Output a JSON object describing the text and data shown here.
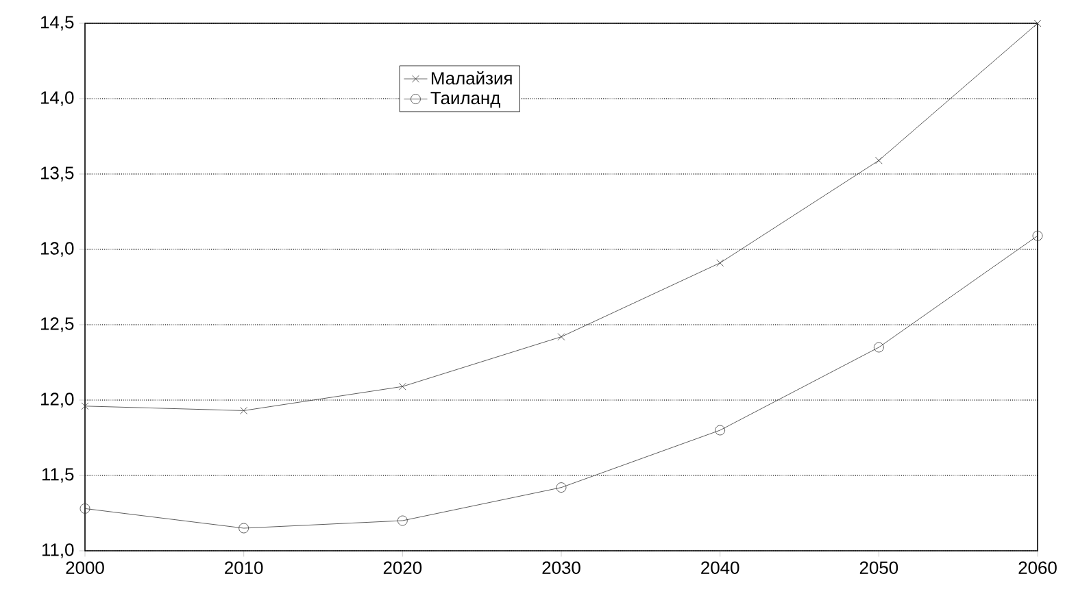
{
  "chart_data": {
    "type": "line",
    "x": [
      2000,
      2010,
      2020,
      2030,
      2040,
      2050,
      2060
    ],
    "series": [
      {
        "name": "Малайзия",
        "color": "#333333",
        "marker": "cross",
        "values": [
          11.96,
          11.93,
          12.09,
          12.42,
          12.91,
          13.59,
          14.5
        ]
      },
      {
        "name": "Таиланд",
        "color": "#333333",
        "marker": "circle",
        "values": [
          11.28,
          11.15,
          11.2,
          11.42,
          11.8,
          12.35,
          13.09
        ]
      }
    ],
    "xlim": [
      2000,
      2060
    ],
    "xticks": [
      2000,
      2010,
      2020,
      2030,
      2040,
      2050,
      2060
    ],
    "ylim": [
      11.0,
      14.5
    ],
    "yticks": [
      {
        "value": 11.0,
        "label": "11,0"
      },
      {
        "value": 11.5,
        "label": "11,5"
      },
      {
        "value": 12.0,
        "label": "12,0"
      },
      {
        "value": 12.5,
        "label": "12,5"
      },
      {
        "value": 13.0,
        "label": "13,0"
      },
      {
        "value": 13.5,
        "label": "13,5"
      },
      {
        "value": 14.0,
        "label": "14,0"
      },
      {
        "value": 14.5,
        "label": "14,5"
      }
    ],
    "grid": "y",
    "legend": "top",
    "line_style": "solid"
  }
}
